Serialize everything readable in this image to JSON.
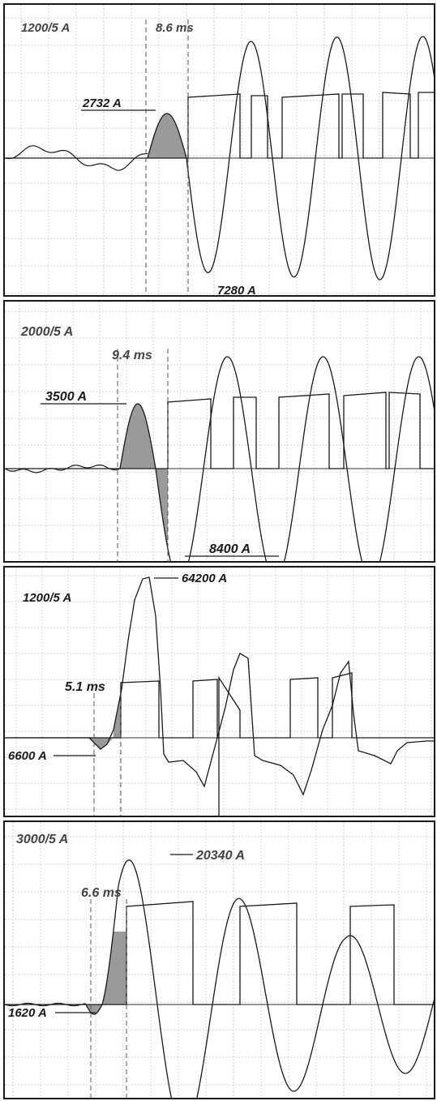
{
  "chart_data": [
    {
      "type": "line",
      "ratio_label": "1200/5 A",
      "time_label": "8.6 ms",
      "peak_label": "2732 A",
      "trough_label": "7280 A",
      "grid": true
    },
    {
      "type": "line",
      "ratio_label": "2000/5 A",
      "time_label": "9.4 ms",
      "peak_label": "3500 A",
      "trough_label": "8400 A",
      "grid": true
    },
    {
      "type": "line",
      "ratio_label": "1200/5 A",
      "time_label": "5.1 ms",
      "peak_label": "64200 A",
      "initial_label": "6600 A",
      "grid": true
    },
    {
      "type": "line",
      "ratio_label": "3000/5 A",
      "time_label": "6.6 ms",
      "peak_label": "20340 A",
      "initial_label": "1620 A",
      "grid": true
    }
  ]
}
